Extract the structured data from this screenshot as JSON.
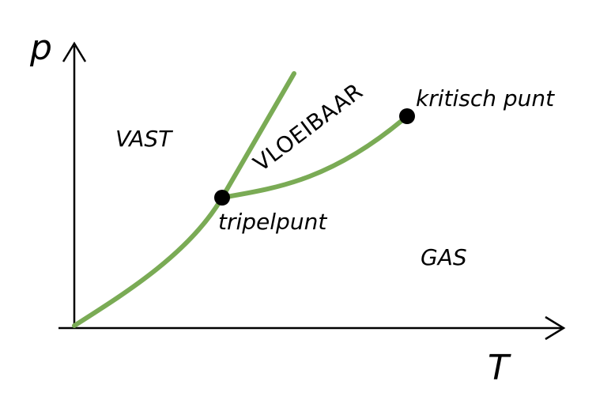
{
  "axes": {
    "y_label": "p",
    "x_label": "T"
  },
  "regions": {
    "solid": "VAST",
    "liquid": "VLOEIBAAR",
    "gas": "GAS"
  },
  "points": {
    "triple": "tripelpunt",
    "critical": "kritisch punt"
  },
  "colors": {
    "curve": "#7aab55",
    "axis": "#000000",
    "point": "#000000"
  }
}
